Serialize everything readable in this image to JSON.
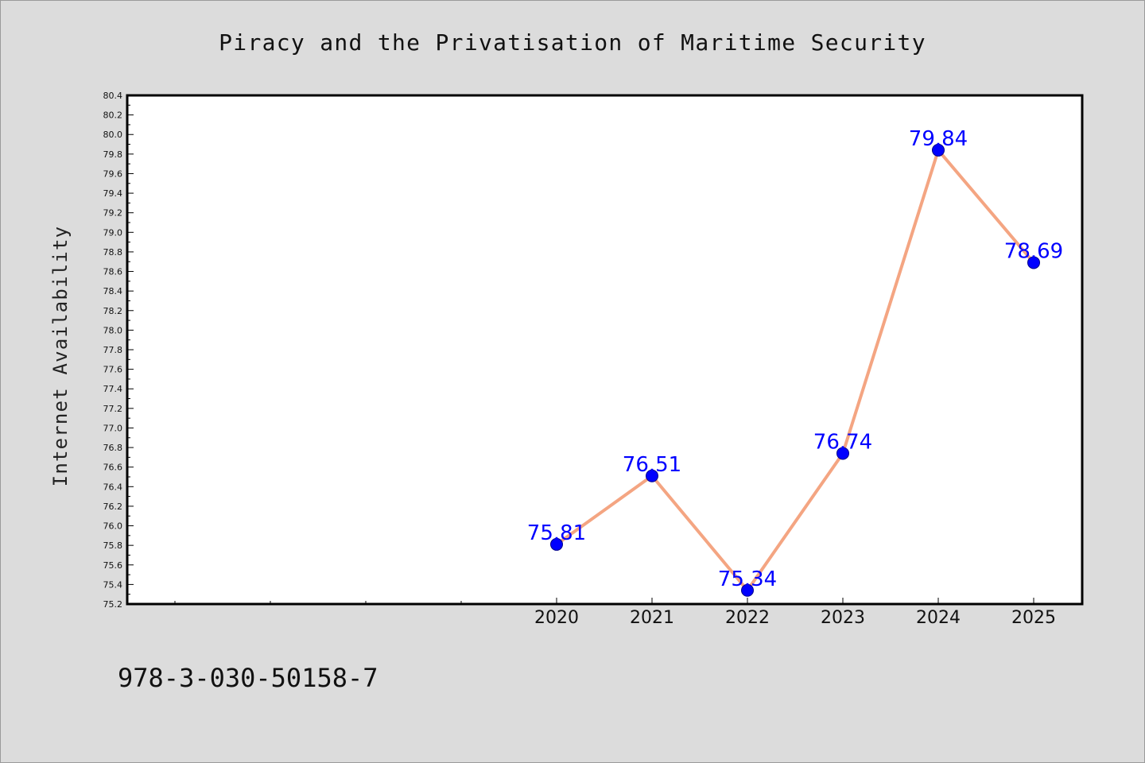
{
  "chart_data": {
    "type": "line",
    "title": "Piracy and the Privatisation of Maritime Security",
    "xlabel": "",
    "ylabel": "Internet Availability",
    "categories": [
      "2020",
      "2021",
      "2022",
      "2023",
      "2024",
      "2025"
    ],
    "series": [
      {
        "values": [
          75.81,
          76.51,
          75.34,
          76.74,
          79.84,
          78.69
        ]
      }
    ],
    "data_labels": [
      "75.81",
      "76.51",
      "75.34",
      "76.74",
      "79.84",
      "78.69"
    ],
    "ylim": [
      75.2,
      80.4
    ],
    "yticks": [
      "75.2",
      "75.4",
      "75.6",
      "75.8",
      "76.0",
      "76.2",
      "76.4",
      "76.6",
      "76.8",
      "77.0",
      "77.2",
      "77.4",
      "77.6",
      "77.8",
      "78.0",
      "78.2",
      "78.4",
      "78.6",
      "78.8",
      "79.0",
      "79.2",
      "79.4",
      "79.6",
      "79.8",
      "80.0",
      "80.2",
      "80.4"
    ],
    "grid": false,
    "colors": {
      "line": "#f4a582",
      "marker": "#0000ff",
      "data_label": "#0000ff"
    }
  },
  "footer": {
    "isbn": "978-3-030-50158-7"
  }
}
